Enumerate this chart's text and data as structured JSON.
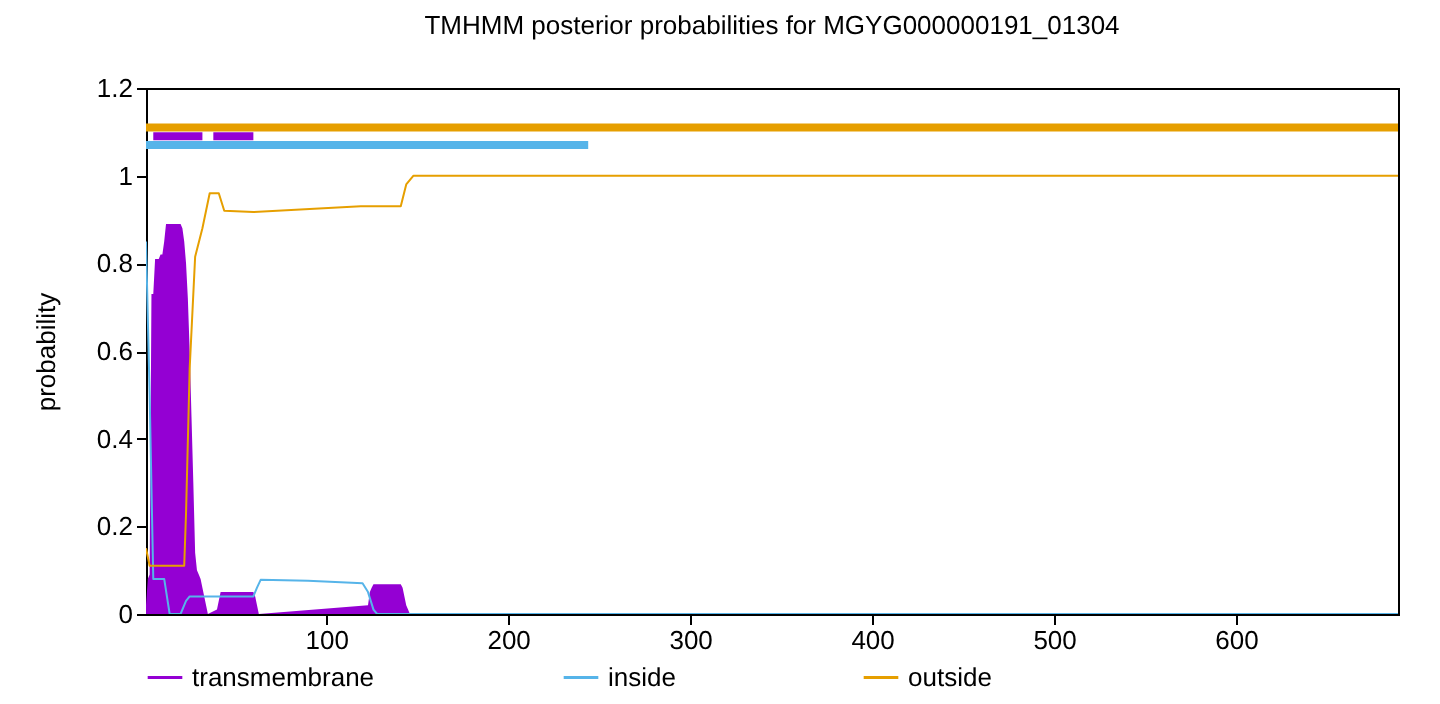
{
  "chart_data": {
    "type": "line",
    "title": "TMHMM posterior probabilities for MGYG000000191_01304",
    "ylabel": "probability",
    "xlim": [
      1,
      689
    ],
    "ylim": [
      0,
      1.2
    ],
    "xticks": [
      100,
      200,
      300,
      400,
      500,
      600
    ],
    "yticks": [
      0,
      0.2,
      0.4,
      0.6,
      0.8,
      1,
      1.2
    ],
    "legend": "bottom",
    "series": [
      {
        "name": "transmembrane",
        "type": "area",
        "color": "#9400d3",
        "x": [
          1,
          2,
          3,
          4,
          5,
          6,
          7,
          8,
          9,
          10,
          11,
          12,
          13,
          14,
          15,
          16,
          17,
          18,
          19,
          20,
          21,
          22,
          23,
          24,
          25,
          26,
          27,
          28,
          29,
          30,
          31,
          32,
          33,
          34,
          35,
          40,
          41,
          42,
          43,
          44,
          45,
          46,
          47,
          48,
          49,
          50,
          51,
          52,
          53,
          54,
          55,
          56,
          57,
          58,
          59,
          60,
          61,
          62,
          63,
          123,
          124,
          125,
          126,
          127,
          128,
          129,
          130,
          131,
          132,
          133,
          134,
          135,
          136,
          137,
          138,
          139,
          140,
          141,
          142,
          143,
          144,
          145,
          146
        ],
        "values": [
          0.02,
          0.08,
          0.09,
          0.73,
          0.73,
          0.81,
          0.81,
          0.81,
          0.82,
          0.82,
          0.85,
          0.89,
          0.89,
          0.89,
          0.89,
          0.89,
          0.89,
          0.89,
          0.89,
          0.89,
          0.88,
          0.85,
          0.8,
          0.72,
          0.6,
          0.45,
          0.3,
          0.14,
          0.1,
          0.09,
          0.08,
          0.06,
          0.04,
          0.02,
          0,
          0.01,
          0.03,
          0.05,
          0.05,
          0.05,
          0.05,
          0.05,
          0.05,
          0.05,
          0.05,
          0.05,
          0.05,
          0.05,
          0.05,
          0.05,
          0.05,
          0.05,
          0.05,
          0.05,
          0.05,
          0.05,
          0.04,
          0.02,
          0,
          0.02,
          0.05,
          0.06,
          0.068,
          0.068,
          0.068,
          0.068,
          0.068,
          0.068,
          0.068,
          0.068,
          0.068,
          0.068,
          0.068,
          0.068,
          0.068,
          0.068,
          0.068,
          0.068,
          0.06,
          0.04,
          0.02,
          0.01,
          0
        ]
      },
      {
        "name": "inside",
        "color": "#56b4e9",
        "x": [
          1,
          3,
          5,
          11,
          14,
          20,
          23,
          25,
          60,
          62,
          64,
          90,
          120,
          123,
          126,
          128,
          689
        ],
        "values": [
          0.85,
          0.5,
          0.08,
          0.08,
          0,
          0,
          0.03,
          0.04,
          0.04,
          0.06,
          0.078,
          0.076,
          0.07,
          0.05,
          0.01,
          0,
          0
        ]
      },
      {
        "name": "outside",
        "color": "#e69f00",
        "x": [
          1,
          3,
          22,
          23,
          25,
          28,
          32,
          36,
          41,
          44,
          60,
          119,
          141,
          144,
          148,
          689
        ],
        "values": [
          0.15,
          0.11,
          0.11,
          0.23,
          0.56,
          0.815,
          0.88,
          0.96,
          0.96,
          0.92,
          0.917,
          0.93,
          0.93,
          0.98,
          1,
          1
        ]
      },
      {
        "color": "#e69f00",
        "x": [
          1,
          689
        ],
        "values": [
          1.11,
          1.11
        ]
      },
      {
        "color": "#56b4e9",
        "x": [
          1,
          244
        ],
        "values": [
          1.07,
          1.07
        ]
      },
      {
        "color": "#9400d3",
        "x": [
          5,
          32
        ],
        "values": [
          1.09,
          1.09
        ]
      },
      {
        "color": "#9400d3",
        "x": [
          38,
          60
        ],
        "values": [
          1.09,
          1.09
        ]
      }
    ]
  }
}
